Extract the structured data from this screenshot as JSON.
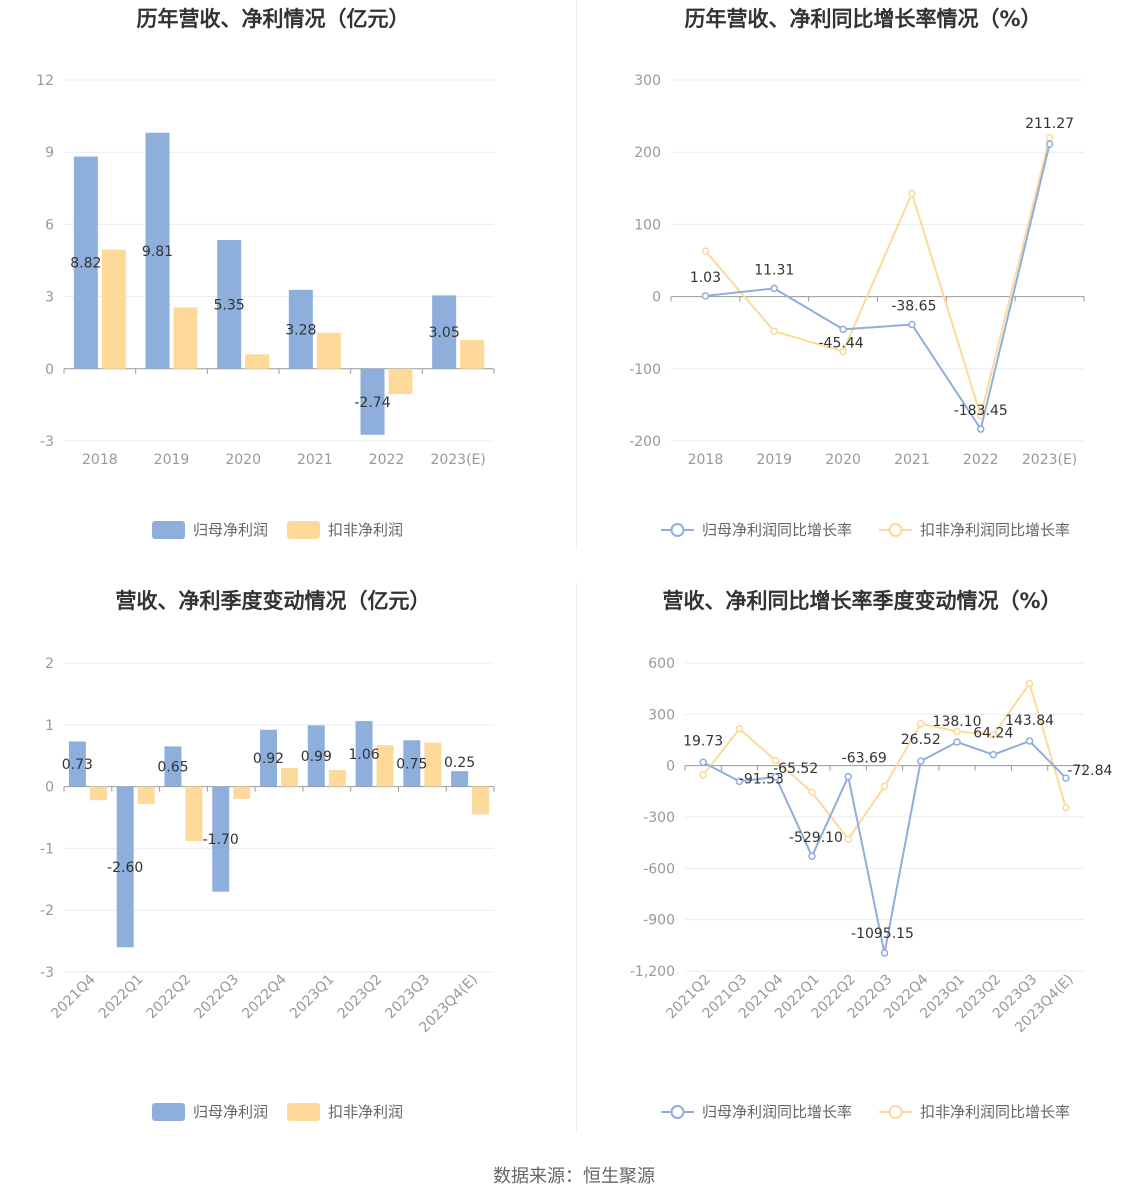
{
  "source": {
    "label": "数据来源：",
    "value": "恒生聚源"
  },
  "colors": {
    "primary": "#8eaedc",
    "secondary": "#fdd99a",
    "grid": "#e8ebf3",
    "axis": "#999999"
  },
  "chart_data": [
    {
      "type": "bar",
      "title": "历年营收、净利情况（亿元）",
      "categories": [
        "2018",
        "2019",
        "2020",
        "2021",
        "2022",
        "2023(E)"
      ],
      "series": [
        {
          "name": "归母净利润",
          "values": [
            8.82,
            9.81,
            5.35,
            3.28,
            -2.74,
            3.05
          ],
          "labels": [
            "8.82",
            "9.81",
            "5.35",
            "3.28",
            "-2.74",
            "3.05"
          ]
        },
        {
          "name": "扣非净利润",
          "values": [
            4.95,
            2.55,
            0.6,
            1.5,
            -1.05,
            1.2
          ]
        }
      ],
      "ylim": [
        -3,
        12
      ],
      "yticks": [
        12,
        9,
        6,
        3,
        0,
        -3
      ],
      "legend": "bottom"
    },
    {
      "type": "line",
      "title": "历年营收、净利同比增长率情况（%）",
      "categories": [
        "2018",
        "2019",
        "2020",
        "2021",
        "2022",
        "2023(E)"
      ],
      "series": [
        {
          "name": "归母净利润同比增长率",
          "values": [
            1.03,
            11.31,
            -45.44,
            -38.65,
            -183.45,
            211.27
          ],
          "labels": [
            "1.03",
            "11.31",
            "-45.44",
            "-38.65",
            "-183.45",
            "211.27"
          ]
        },
        {
          "name": "扣非净利润同比增长率",
          "values": [
            63,
            -48,
            -76,
            143,
            -165,
            220
          ]
        }
      ],
      "ylim": [
        -200,
        300
      ],
      "yticks": [
        300,
        200,
        100,
        0,
        -100,
        -200
      ],
      "legend": "bottom"
    },
    {
      "type": "bar",
      "title": "营收、净利季度变动情况（亿元）",
      "categories": [
        "2021Q4",
        "2022Q1",
        "2022Q2",
        "2022Q3",
        "2022Q4",
        "2023Q1",
        "2023Q2",
        "2023Q3",
        "2023Q4(E)"
      ],
      "series": [
        {
          "name": "归母净利润",
          "values": [
            0.73,
            -2.6,
            0.65,
            -1.7,
            0.92,
            0.99,
            1.06,
            0.75,
            0.25
          ],
          "labels": [
            "0.73",
            "-2.60",
            "0.65",
            "-1.70",
            "0.92",
            "0.99",
            "1.06",
            "0.75",
            "0.25"
          ]
        },
        {
          "name": "扣非净利润",
          "values": [
            -0.22,
            -0.28,
            -0.88,
            -0.2,
            0.3,
            0.27,
            0.67,
            0.71,
            -0.45
          ]
        }
      ],
      "ylim": [
        -3,
        2
      ],
      "yticks": [
        2,
        1,
        0,
        -1,
        -2,
        -3
      ],
      "legend": "bottom"
    },
    {
      "type": "line",
      "title": "营收、净利同比增长率季度变动情况（%）",
      "categories": [
        "2021Q2",
        "2021Q3",
        "2021Q4",
        "2022Q1",
        "2022Q2",
        "2022Q3",
        "2022Q4",
        "2023Q1",
        "2023Q2",
        "2023Q3",
        "2023Q4(E)"
      ],
      "series": [
        {
          "name": "归母净利润同比增长率",
          "values": [
            19.73,
            -91.53,
            -65.52,
            -529.1,
            -63.69,
            -1095.15,
            26.52,
            138.1,
            64.24,
            143.84,
            -72.84
          ],
          "labels": [
            "19.73",
            "-91.53",
            "-65.52",
            "-529.10",
            "-63.69",
            "-1095.15",
            "26.52",
            "138.10",
            "64.24",
            "143.84",
            "-72.84"
          ]
        },
        {
          "name": "扣非净利润同比增长率",
          "values": [
            -55,
            215,
            30,
            -155,
            -430,
            -120,
            245,
            200,
            180,
            480,
            -245
          ]
        }
      ],
      "ylim": [
        -1200,
        600
      ],
      "yticks": [
        600,
        300,
        0,
        -300,
        -600,
        -900,
        -1200
      ],
      "yticklabels": [
        "600",
        "300",
        "0",
        "-300",
        "-600",
        "-900",
        "-1,200"
      ],
      "legend": "bottom"
    }
  ]
}
